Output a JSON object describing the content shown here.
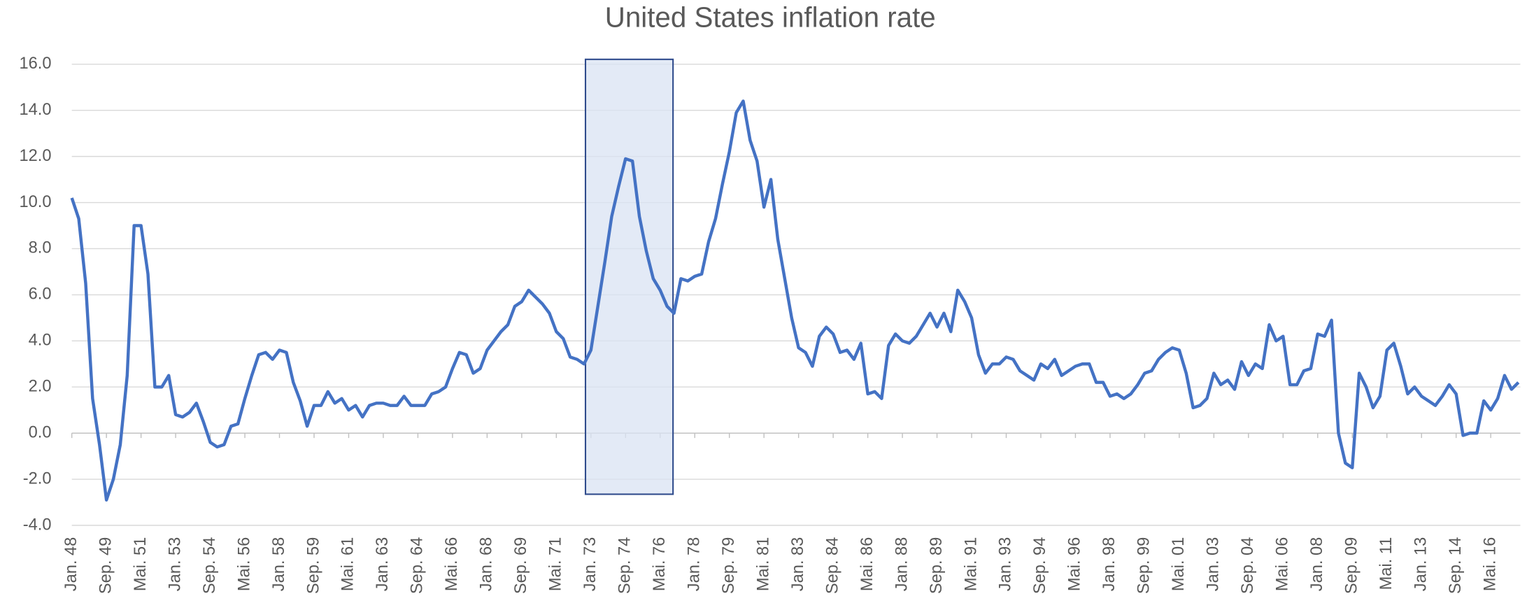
{
  "chart_data": {
    "type": "line",
    "title": "United States inflation rate",
    "categories": [
      "Jan. 48",
      null,
      null,
      null,
      null,
      "Sep. 49",
      null,
      null,
      null,
      null,
      "Mai. 51",
      null,
      null,
      null,
      null,
      "Jan. 53",
      null,
      null,
      null,
      null,
      "Sep. 54",
      null,
      null,
      null,
      null,
      "Mai. 56",
      null,
      null,
      null,
      null,
      "Jan. 58",
      null,
      null,
      null,
      null,
      "Sep. 59",
      null,
      null,
      null,
      null,
      "Mai. 61",
      null,
      null,
      null,
      null,
      "Jan. 63",
      null,
      null,
      null,
      null,
      "Sep. 64",
      null,
      null,
      null,
      null,
      "Mai. 66",
      null,
      null,
      null,
      null,
      "Jan. 68",
      null,
      null,
      null,
      null,
      "Sep. 69",
      null,
      null,
      null,
      null,
      "Mai. 71",
      null,
      null,
      null,
      null,
      "Jan. 73",
      null,
      null,
      null,
      null,
      "Sep. 74",
      null,
      null,
      null,
      null,
      "Mai. 76",
      null,
      null,
      null,
      null,
      "Jan. 78",
      null,
      null,
      null,
      null,
      "Sep. 79",
      null,
      null,
      null,
      null,
      "Mai. 81",
      null,
      null,
      null,
      null,
      "Jan. 83",
      null,
      null,
      null,
      null,
      "Sep. 84",
      null,
      null,
      null,
      null,
      "Mai. 86",
      null,
      null,
      null,
      null,
      "Jan. 88",
      null,
      null,
      null,
      null,
      "Sep. 89",
      null,
      null,
      null,
      null,
      "Mai. 91",
      null,
      null,
      null,
      null,
      "Jan. 93",
      null,
      null,
      null,
      null,
      "Sep. 94",
      null,
      null,
      null,
      null,
      "Mai. 96",
      null,
      null,
      null,
      null,
      "Jan. 98",
      null,
      null,
      null,
      null,
      "Sep. 99",
      null,
      null,
      null,
      null,
      "Mai. 01",
      null,
      null,
      null,
      null,
      "Jan. 03",
      null,
      null,
      null,
      null,
      "Sep. 04",
      null,
      null,
      null,
      null,
      "Mai. 06",
      null,
      null,
      null,
      null,
      "Jan. 08",
      null,
      null,
      null,
      null,
      "Sep. 09",
      null,
      null,
      null,
      null,
      "Mai. 11",
      null,
      null,
      null,
      null,
      "Jan. 13",
      null,
      null,
      null,
      null,
      "Sep. 14",
      null,
      null,
      null,
      null,
      "Mai. 16",
      null,
      null,
      null,
      null
    ],
    "series": [
      {
        "name": "Inflation rate",
        "color": "#4472c4",
        "values": [
          10.2,
          9.3,
          6.5,
          1.5,
          -0.5,
          -2.9,
          -2.0,
          -0.5,
          2.5,
          9.0,
          9.0,
          6.9,
          2.0,
          2.0,
          2.5,
          0.8,
          0.7,
          0.9,
          1.3,
          0.5,
          -0.4,
          -0.6,
          -0.5,
          0.3,
          0.4,
          1.5,
          2.5,
          3.4,
          3.5,
          3.2,
          3.6,
          3.5,
          2.2,
          1.4,
          0.3,
          1.2,
          1.2,
          1.8,
          1.3,
          1.5,
          1.0,
          1.2,
          0.7,
          1.2,
          1.3,
          1.3,
          1.2,
          1.2,
          1.6,
          1.2,
          1.2,
          1.2,
          1.7,
          1.8,
          2.0,
          2.8,
          3.5,
          3.4,
          2.6,
          2.8,
          3.6,
          4.0,
          4.4,
          4.7,
          5.5,
          5.7,
          6.2,
          5.9,
          5.6,
          5.2,
          4.4,
          4.1,
          3.3,
          3.2,
          3.0,
          3.6,
          5.5,
          7.4,
          9.4,
          10.7,
          11.9,
          11.8,
          9.4,
          7.9,
          6.7,
          6.2,
          5.5,
          5.2,
          6.7,
          6.6,
          6.8,
          6.9,
          8.3,
          9.3,
          10.8,
          12.2,
          13.9,
          14.4,
          12.7,
          11.8,
          9.8,
          11.0,
          8.4,
          6.7,
          5.0,
          3.7,
          3.5,
          2.9,
          4.2,
          4.6,
          4.3,
          3.5,
          3.6,
          3.2,
          3.9,
          1.7,
          1.8,
          1.5,
          3.8,
          4.3,
          4.0,
          3.9,
          4.2,
          4.7,
          5.2,
          4.6,
          5.2,
          4.4,
          6.2,
          5.7,
          5.0,
          3.4,
          2.6,
          3.0,
          3.0,
          3.3,
          3.2,
          2.7,
          2.5,
          2.3,
          3.0,
          2.8,
          3.2,
          2.5,
          2.7,
          2.9,
          3.0,
          3.0,
          2.2,
          2.2,
          1.6,
          1.7,
          1.5,
          1.7,
          2.1,
          2.6,
          2.7,
          3.2,
          3.5,
          3.7,
          3.6,
          2.6,
          1.1,
          1.2,
          1.5,
          2.6,
          2.1,
          2.3,
          1.9,
          3.1,
          2.5,
          3.0,
          2.8,
          4.7,
          4.0,
          4.2,
          2.1,
          2.1,
          2.7,
          2.8,
          4.3,
          4.2,
          4.9,
          0.0,
          -1.3,
          -1.5,
          2.6,
          2.0,
          1.1,
          1.6,
          3.6,
          3.9,
          2.9,
          1.7,
          2.0,
          1.6,
          1.4,
          1.2,
          1.6,
          2.1,
          1.7,
          -0.1,
          0.0,
          0.0,
          1.4,
          1.0,
          1.5,
          2.5,
          1.9,
          2.2
        ]
      }
    ],
    "ylim": [
      -4,
      16
    ],
    "yticks": [
      {
        "value": -4,
        "label": "-4.0"
      },
      {
        "value": -2,
        "label": "-2.0"
      },
      {
        "value": 0,
        "label": "0.0"
      },
      {
        "value": 2,
        "label": "2.0"
      },
      {
        "value": 4,
        "label": "4.0"
      },
      {
        "value": 6,
        "label": "6.0"
      },
      {
        "value": 8,
        "label": "8.0"
      },
      {
        "value": 10,
        "label": "10.0"
      },
      {
        "value": 12,
        "label": "12.0"
      },
      {
        "value": 14,
        "label": "14.0"
      },
      {
        "value": 16,
        "label": "16.0"
      }
    ],
    "grid": true
  }
}
